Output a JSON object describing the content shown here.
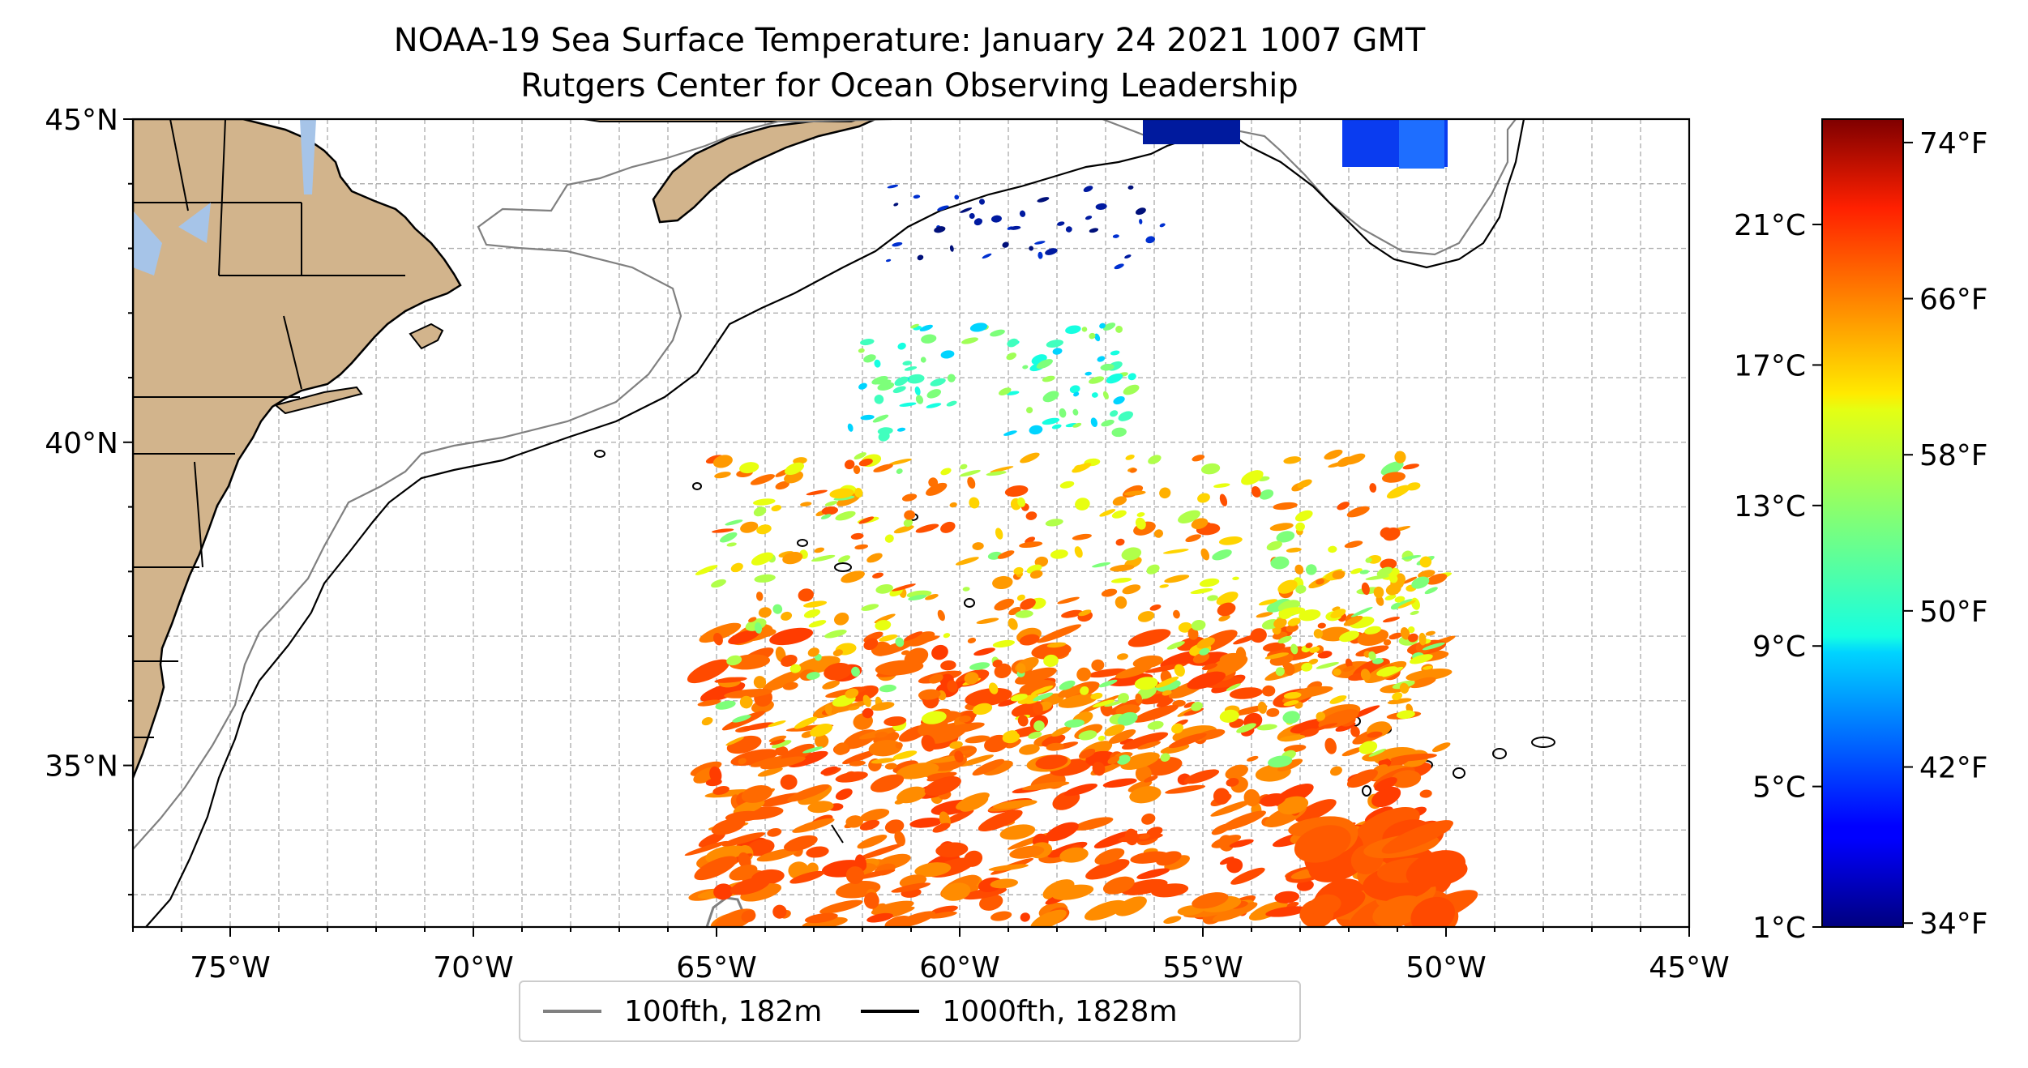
{
  "title": {
    "line1": "NOAA-19 Sea Surface Temperature: January 24 2021 1007 GMT",
    "line2": "Rutgers Center for Ocean Observing Leadership"
  },
  "map": {
    "lon_range": [
      -77,
      -45
    ],
    "lat_range": [
      32.5,
      45
    ],
    "lon_ticks": [
      {
        "value": -75,
        "label": "75°W"
      },
      {
        "value": -70,
        "label": "70°W"
      },
      {
        "value": -65,
        "label": "65°W"
      },
      {
        "value": -60,
        "label": "60°W"
      },
      {
        "value": -55,
        "label": "55°W"
      },
      {
        "value": -50,
        "label": "50°W"
      },
      {
        "value": -45,
        "label": "45°W"
      }
    ],
    "lat_ticks": [
      {
        "value": 45,
        "label": "45°N"
      },
      {
        "value": 40,
        "label": "40°N"
      },
      {
        "value": 35,
        "label": "35°N"
      }
    ],
    "gridlines": true,
    "colors": {
      "land": "#d2b48c",
      "lakes": "#a6c4e8",
      "ocean": "#ffffff",
      "contour_100": "#808080",
      "contour_1000": "#000000"
    }
  },
  "legend": {
    "placement": "bottom-center",
    "entries": [
      {
        "label": "100fth, 182m",
        "color": "#808080"
      },
      {
        "label": "1000fth, 1828m",
        "color": "#000000"
      }
    ]
  },
  "colorbar": {
    "colormap": "jet",
    "range_celsius": [
      1,
      24
    ],
    "celsius_ticks": [
      {
        "value": 1,
        "label": "1°C"
      },
      {
        "value": 5,
        "label": "5°C"
      },
      {
        "value": 9,
        "label": "9°C"
      },
      {
        "value": 13,
        "label": "13°C"
      },
      {
        "value": 17,
        "label": "17°C"
      },
      {
        "value": 21,
        "label": "21°C"
      }
    ],
    "fahrenheit_ticks": [
      {
        "value": 34,
        "label": "34°F"
      },
      {
        "value": 42,
        "label": "42°F"
      },
      {
        "value": 50,
        "label": "50°F"
      },
      {
        "value": 58,
        "label": "58°F"
      },
      {
        "value": 66,
        "label": "66°F"
      },
      {
        "value": 74,
        "label": "74°F"
      }
    ]
  }
}
